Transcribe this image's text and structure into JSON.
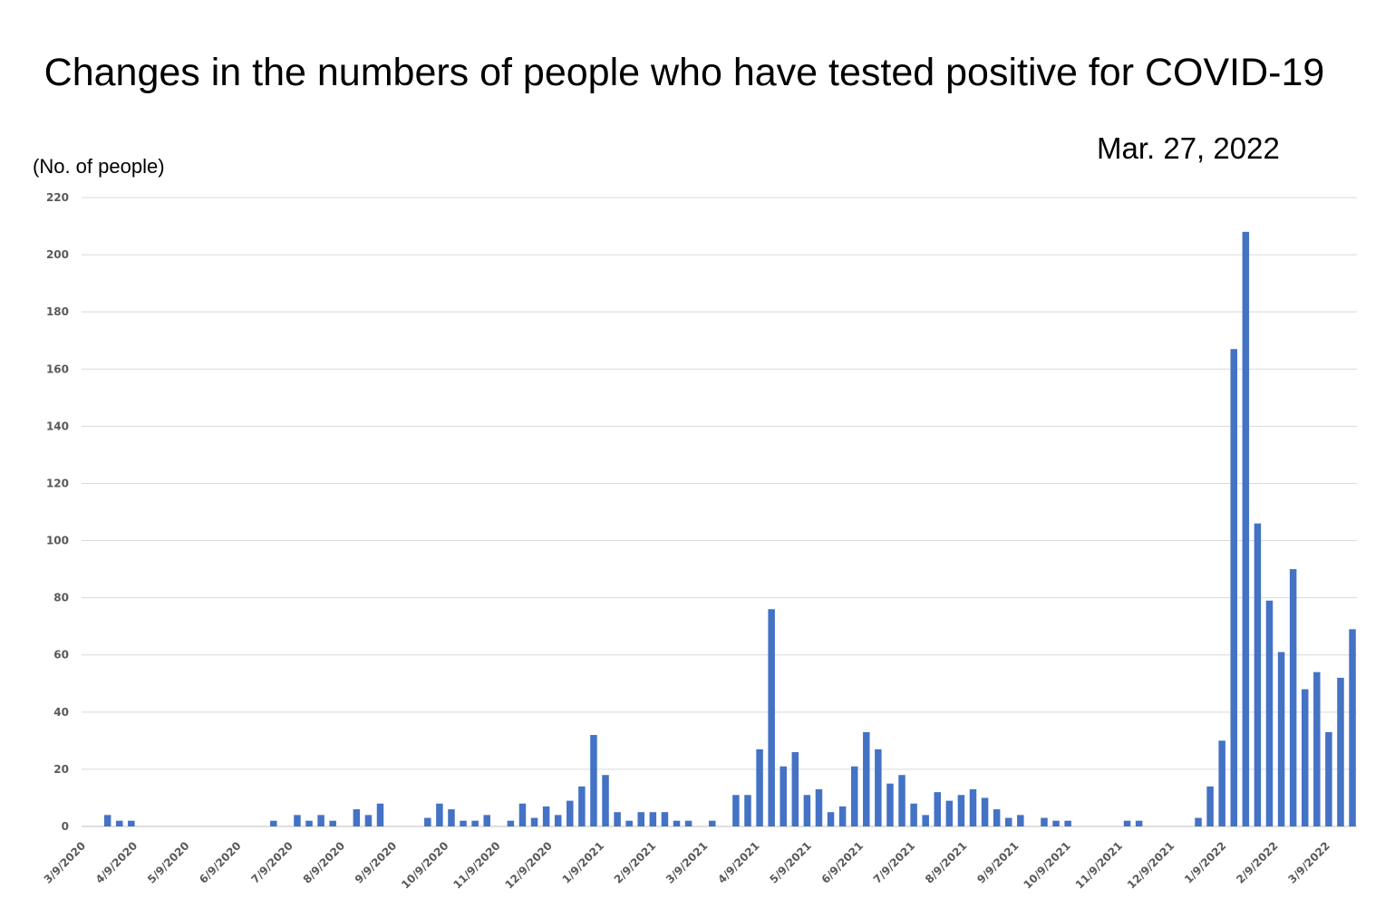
{
  "title": "Changes in the numbers of people who have tested positive for COVID-19",
  "date": "Mar. 27, 2022",
  "chart_data": {
    "type": "bar",
    "title": "Changes in the numbers of people who have tested positive for COVID-19",
    "ylabel": "(No. of people)",
    "xlabel": "",
    "ylim": [
      0,
      220
    ],
    "y_ticks": [
      0,
      20,
      40,
      60,
      80,
      100,
      120,
      140,
      160,
      180,
      200,
      220
    ],
    "x_tick_labels": [
      "3/9/2020",
      "4/9/2020",
      "5/9/2020",
      "6/9/2020",
      "7/9/2020",
      "8/9/2020",
      "9/9/2020",
      "10/9/2020",
      "11/9/2020",
      "12/9/2020",
      "1/9/2021",
      "2/9/2021",
      "3/9/2021",
      "4/9/2021",
      "5/9/2021",
      "6/9/2021",
      "7/9/2021",
      "8/9/2021",
      "9/9/2021",
      "10/9/2021",
      "11/9/2021",
      "12/9/2021",
      "1/9/2022",
      "2/9/2022",
      "3/9/2022"
    ],
    "grid": true,
    "bar_color": "#4472C4",
    "values": [
      0,
      0,
      4,
      2,
      2,
      0,
      0,
      0,
      0,
      0,
      0,
      0,
      0,
      0,
      0,
      0,
      2,
      0,
      4,
      2,
      4,
      2,
      0,
      6,
      4,
      8,
      0,
      0,
      0,
      3,
      8,
      6,
      2,
      2,
      4,
      0,
      2,
      8,
      3,
      7,
      4,
      9,
      14,
      32,
      18,
      5,
      2,
      5,
      5,
      5,
      2,
      2,
      0,
      2,
      0,
      11,
      11,
      27,
      76,
      21,
      26,
      11,
      13,
      5,
      7,
      21,
      33,
      27,
      15,
      18,
      8,
      4,
      12,
      9,
      11,
      13,
      10,
      6,
      3,
      4,
      0,
      3,
      2,
      2,
      0,
      0,
      0,
      0,
      2,
      2,
      0,
      0,
      0,
      0,
      3,
      14,
      30,
      167,
      208,
      106,
      79,
      61,
      90,
      48,
      54,
      33,
      52,
      69
    ]
  }
}
